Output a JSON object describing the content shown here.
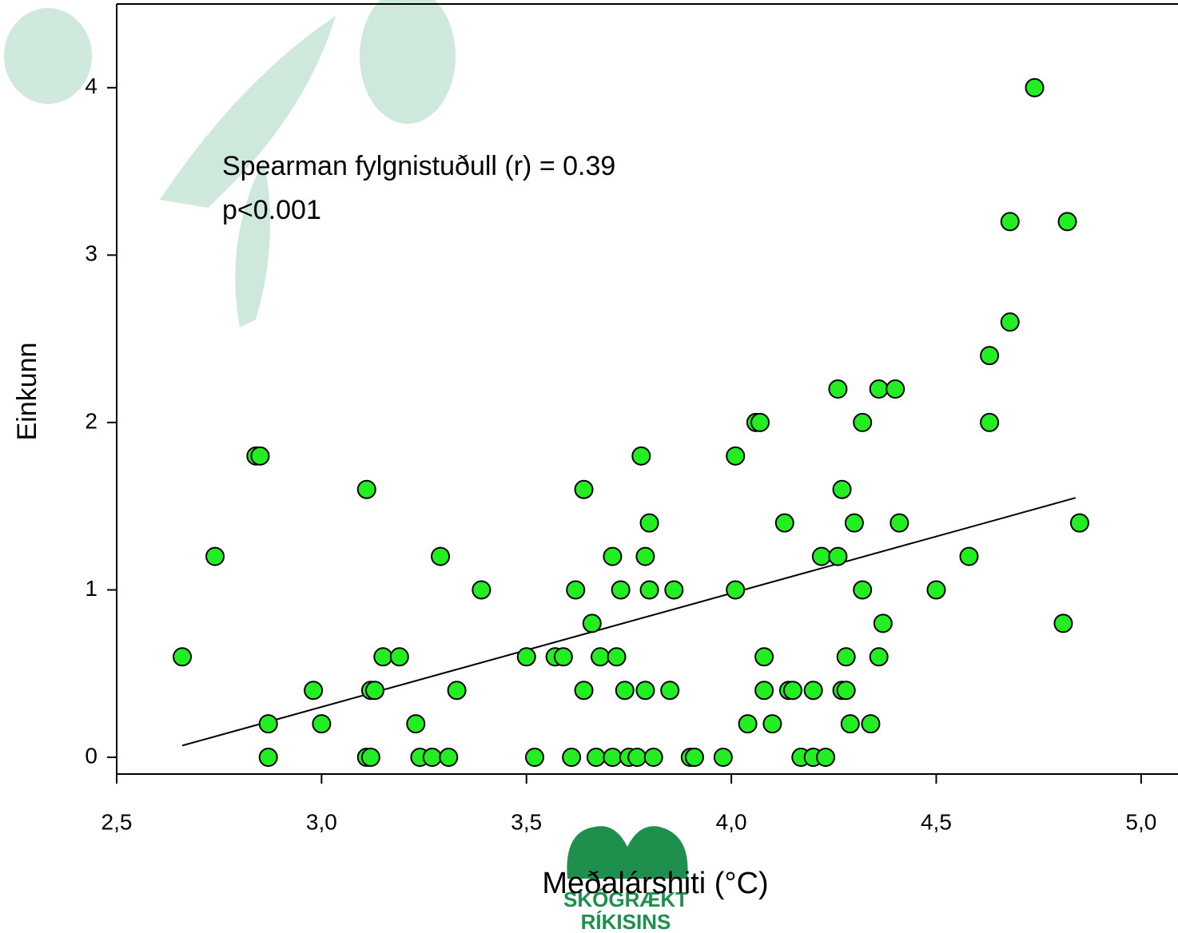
{
  "chart_data": {
    "type": "scatter",
    "x_label": "Meðalárshiti (°C)",
    "y_label": "Einkunn",
    "annotations": [
      "Spearman fylgnistuðull (r) = 0.39",
      "p<0.001"
    ],
    "logo": [
      "SKÓGRÆKT",
      "RÍKISINS"
    ],
    "xlim": [
      2.5,
      5.09
    ],
    "ylim": [
      -0.1,
      4.5
    ],
    "xticks": [
      {
        "value": 2.5,
        "label": "2,5"
      },
      {
        "value": 3.0,
        "label": "3,0"
      },
      {
        "value": 3.5,
        "label": "3,5"
      },
      {
        "value": 4.0,
        "label": "4,0"
      },
      {
        "value": 4.5,
        "label": "4,5"
      },
      {
        "value": 5.0,
        "label": "5,0"
      }
    ],
    "yticks": [
      0,
      1,
      2,
      3,
      4
    ],
    "series": [
      {
        "color": "#22ee22",
        "x": [
          2.66,
          2.74,
          2.84,
          2.85,
          2.87,
          2.87,
          2.98,
          3.0,
          3.11,
          3.11,
          3.12,
          3.12,
          3.13,
          3.15,
          3.19,
          3.23,
          3.24,
          3.27,
          3.29,
          3.31,
          3.33,
          3.39,
          3.5,
          3.52,
          3.57,
          3.59,
          3.61,
          3.62,
          3.64,
          3.64,
          3.66,
          3.67,
          3.68,
          3.71,
          3.71,
          3.72,
          3.73,
          3.74,
          3.75,
          3.77,
          3.78,
          3.79,
          3.79,
          3.8,
          3.8,
          3.81,
          3.85,
          3.86,
          3.9,
          3.91,
          3.98,
          4.01,
          4.01,
          4.04,
          4.06,
          4.07,
          4.08,
          4.08,
          4.1,
          4.13,
          4.14,
          4.15,
          4.17,
          4.2,
          4.2,
          4.22,
          4.23,
          4.26,
          4.26,
          4.27,
          4.27,
          4.28,
          4.28,
          4.29,
          4.3,
          4.32,
          4.32,
          4.34,
          4.36,
          4.36,
          4.37,
          4.4,
          4.41,
          4.5,
          4.58,
          4.63,
          4.63,
          4.68,
          4.68,
          4.74,
          4.81,
          4.82,
          4.85
        ],
        "values": [
          0.6,
          1.2,
          1.8,
          1.8,
          0.2,
          0,
          0.4,
          0.2,
          1.6,
          0,
          0,
          0.4,
          0.4,
          0.6,
          0.6,
          0.2,
          0,
          0,
          1.2,
          0,
          0.4,
          1.0,
          0.6,
          0,
          0.6,
          0.6,
          0,
          1.0,
          1.6,
          0.4,
          0.8,
          0,
          0.6,
          0,
          1.2,
          0.6,
          1.0,
          0.4,
          0,
          0,
          1.8,
          0.4,
          1.2,
          1.4,
          1.0,
          0,
          0.4,
          1.0,
          0,
          0,
          0,
          1.0,
          1.8,
          0.2,
          2.0,
          2.0,
          0.4,
          0.6,
          0.2,
          1.4,
          0.4,
          0.4,
          0,
          0,
          0.4,
          1.2,
          0,
          1.2,
          2.2,
          1.6,
          0.4,
          0.6,
          0.4,
          0.2,
          1.4,
          2.0,
          1.0,
          0.2,
          2.2,
          0.6,
          0.8,
          2.2,
          1.4,
          1.0,
          1.2,
          2.4,
          2.0,
          3.2,
          2.6,
          4.0,
          0.8,
          3.2,
          1.4
        ]
      }
    ],
    "trendline": {
      "x": [
        2.66,
        4.84
      ],
      "y": [
        0.07,
        1.55
      ],
      "color": "#000000"
    }
  }
}
